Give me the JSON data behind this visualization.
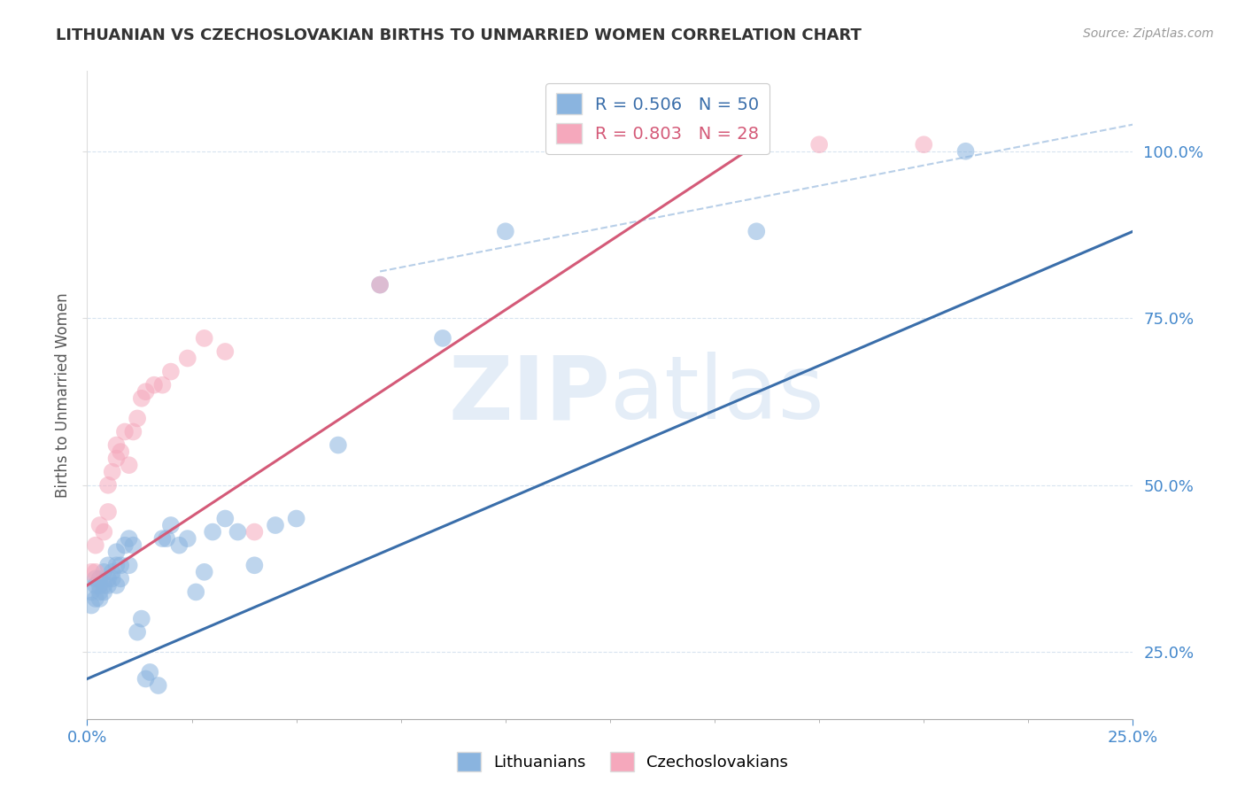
{
  "title": "LITHUANIAN VS CZECHOSLOVAKIAN BIRTHS TO UNMARRIED WOMEN CORRELATION CHART",
  "source": "Source: ZipAtlas.com",
  "ylabel": "Births to Unmarried Women",
  "legend_entries": [
    {
      "label": "R = 0.506   N = 50",
      "color": "#8ab4df"
    },
    {
      "label": "R = 0.803   N = 28",
      "color": "#f5a8bc"
    }
  ],
  "legend_labels": [
    "Lithuanians",
    "Czechoslovakians"
  ],
  "watermark_zip": "ZIP",
  "watermark_atlas": "atlas",
  "blue_color": "#8ab4df",
  "pink_color": "#f5a8bc",
  "blue_line_color": "#3a6eaa",
  "pink_line_color": "#d45a78",
  "ref_line_color": "#b8cfe8",
  "xlim": [
    0.0,
    0.25
  ],
  "ylim": [
    0.15,
    1.12
  ],
  "blue_scatter_x": [
    0.001,
    0.001,
    0.002,
    0.002,
    0.002,
    0.003,
    0.003,
    0.003,
    0.003,
    0.004,
    0.004,
    0.004,
    0.005,
    0.005,
    0.005,
    0.006,
    0.006,
    0.007,
    0.007,
    0.007,
    0.008,
    0.008,
    0.009,
    0.01,
    0.01,
    0.011,
    0.012,
    0.013,
    0.014,
    0.015,
    0.017,
    0.018,
    0.019,
    0.02,
    0.022,
    0.024,
    0.026,
    0.028,
    0.03,
    0.033,
    0.036,
    0.04,
    0.045,
    0.05,
    0.06,
    0.07,
    0.085,
    0.1,
    0.16,
    0.21
  ],
  "blue_scatter_y": [
    0.32,
    0.34,
    0.33,
    0.36,
    0.35,
    0.34,
    0.33,
    0.35,
    0.36,
    0.35,
    0.37,
    0.34,
    0.36,
    0.38,
    0.35,
    0.37,
    0.36,
    0.38,
    0.35,
    0.4,
    0.38,
    0.36,
    0.41,
    0.38,
    0.42,
    0.41,
    0.28,
    0.3,
    0.21,
    0.22,
    0.2,
    0.42,
    0.42,
    0.44,
    0.41,
    0.42,
    0.34,
    0.37,
    0.43,
    0.45,
    0.43,
    0.38,
    0.44,
    0.45,
    0.56,
    0.8,
    0.72,
    0.88,
    0.88,
    1.0
  ],
  "pink_scatter_x": [
    0.001,
    0.002,
    0.002,
    0.003,
    0.004,
    0.005,
    0.005,
    0.006,
    0.007,
    0.007,
    0.008,
    0.009,
    0.01,
    0.011,
    0.012,
    0.013,
    0.014,
    0.016,
    0.018,
    0.02,
    0.024,
    0.028,
    0.033,
    0.04,
    0.07,
    0.12,
    0.175,
    0.2
  ],
  "pink_scatter_y": [
    0.37,
    0.41,
    0.37,
    0.44,
    0.43,
    0.46,
    0.5,
    0.52,
    0.54,
    0.56,
    0.55,
    0.58,
    0.53,
    0.58,
    0.6,
    0.63,
    0.64,
    0.65,
    0.65,
    0.67,
    0.69,
    0.72,
    0.7,
    0.43,
    0.8,
    1.01,
    1.01,
    1.01
  ],
  "blue_trend_x": [
    0.0,
    0.25
  ],
  "blue_trend_y": [
    0.21,
    0.88
  ],
  "pink_trend_x": [
    0.0,
    0.16
  ],
  "pink_trend_y": [
    0.35,
    1.01
  ],
  "ref_line_x": [
    0.07,
    0.25
  ],
  "ref_line_y": [
    0.82,
    1.04
  ],
  "grid_color": "#d8e4f0",
  "title_color": "#333333",
  "source_color": "#999999",
  "tick_color_blue": "#4488cc",
  "axis_color": "#cccccc"
}
